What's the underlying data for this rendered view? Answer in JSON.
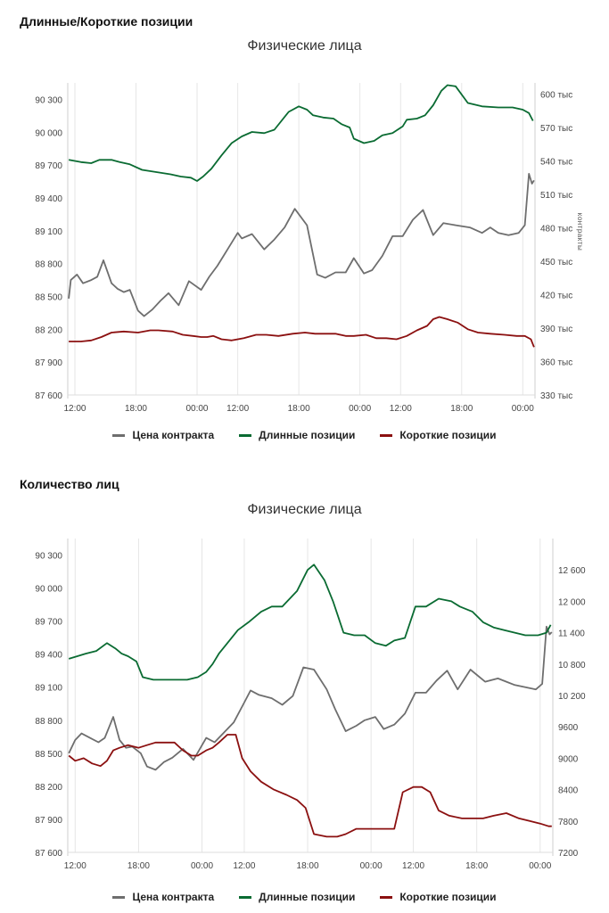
{
  "sections": [
    {
      "title": "Длинные/Короткие позиции",
      "subtitle": "Физические лица"
    },
    {
      "title": "Количество лиц",
      "subtitle": "Физические лица"
    }
  ],
  "legend": [
    {
      "label": "Цена контракта",
      "color": "#6e6e6e"
    },
    {
      "label": "Длинные позиции",
      "color": "#0a6b32"
    },
    {
      "label": "Короткие позиции",
      "color": "#8b1010"
    }
  ],
  "chart_data": [
    {
      "type": "line",
      "title": "Физические лица",
      "x_ticks": [
        "12:00",
        "18:00",
        "00:00",
        "12:00",
        "18:00",
        "00:00",
        "12:00",
        "18:00",
        "00:00"
      ],
      "x_tick_hours": [
        12,
        18,
        24,
        28,
        34,
        40,
        44,
        50,
        56
      ],
      "x_range": [
        11.3,
        57.2
      ],
      "left_axis": {
        "ylim": [
          87600,
          90450
        ],
        "ticks": [
          87600,
          87900,
          88200,
          88500,
          88800,
          89100,
          89400,
          89700,
          90000,
          90300
        ],
        "tick_labels": [
          "87 600",
          "87 900",
          "88 200",
          "88 500",
          "88 800",
          "89 100",
          "89 400",
          "89 700",
          "90 000",
          "90 300"
        ]
      },
      "right_axis": {
        "label": "контракты",
        "ylim": [
          330000,
          610000
        ],
        "ticks": [
          330000,
          360000,
          390000,
          420000,
          450000,
          480000,
          510000,
          540000,
          570000,
          600000
        ],
        "tick_labels": [
          "330 тыс",
          "360 тыс",
          "390 тыс",
          "420 тыс",
          "450 тыс",
          "480 тыс",
          "510 тыс",
          "540 тыс",
          "570 тыс",
          "600 тыс"
        ]
      },
      "series": [
        {
          "name": "Цена контракта",
          "axis": "left",
          "x": [
            11.4,
            11.6,
            12.2,
            12.8,
            13.6,
            14.2,
            14.8,
            15.6,
            16.2,
            16.8,
            17.4,
            18.2,
            18.8,
            19.6,
            20.4,
            21.2,
            22.2,
            23.2,
            24.4,
            25.2,
            26.0,
            27.0,
            28.0,
            28.4,
            29.4,
            30.6,
            31.6,
            32.6,
            33.6,
            34.8,
            35.8,
            36.6,
            37.6,
            38.6,
            39.4,
            40.4,
            41.2,
            42.2,
            43.2,
            44.2,
            45.2,
            46.2,
            47.2,
            48.2,
            49.4,
            50.8,
            52.0,
            52.8,
            53.6,
            54.6,
            55.6,
            56.2,
            56.6,
            56.9,
            57.1
          ],
          "y": [
            88480,
            88650,
            88700,
            88620,
            88650,
            88680,
            88830,
            88620,
            88570,
            88540,
            88560,
            88370,
            88320,
            88380,
            88460,
            88530,
            88420,
            88640,
            88560,
            88680,
            88780,
            88930,
            89080,
            89030,
            89070,
            88930,
            89020,
            89130,
            89300,
            89150,
            88700,
            88670,
            88720,
            88720,
            88850,
            88710,
            88740,
            88870,
            89050,
            89050,
            89200,
            89290,
            89060,
            89170,
            89150,
            89130,
            89080,
            89130,
            89080,
            89060,
            89080,
            89150,
            89620,
            89530,
            89560
          ]
        },
        {
          "name": "Длинные позиции",
          "axis": "right",
          "x": [
            11.4,
            12.6,
            13.6,
            14.4,
            15.6,
            16.4,
            17.4,
            18.6,
            20.0,
            21.4,
            22.4,
            23.4,
            24.0,
            24.6,
            25.4,
            26.4,
            27.4,
            28.4,
            29.4,
            30.6,
            31.6,
            33.0,
            34.0,
            34.8,
            35.4,
            36.4,
            37.4,
            38.2,
            39.0,
            39.4,
            40.4,
            41.4,
            42.2,
            43.2,
            44.2,
            44.6,
            45.6,
            46.4,
            47.2,
            48.0,
            48.6,
            49.4,
            50.6,
            52.0,
            53.6,
            55.0,
            56.0,
            56.6,
            57.0
          ],
          "y": [
            541000,
            539000,
            538000,
            541000,
            541000,
            539000,
            537000,
            532000,
            530000,
            528000,
            526000,
            525000,
            522000,
            526000,
            533000,
            545000,
            556000,
            562000,
            566000,
            565000,
            568000,
            584000,
            589000,
            586000,
            581000,
            579000,
            578000,
            573000,
            570000,
            560000,
            556000,
            558000,
            563000,
            565000,
            571000,
            577000,
            578000,
            581000,
            590000,
            603000,
            608000,
            607000,
            592000,
            589000,
            588000,
            588000,
            586000,
            583000,
            576000
          ]
        },
        {
          "name": "Короткие позиции",
          "axis": "right",
          "x": [
            11.4,
            12.6,
            13.6,
            14.6,
            15.6,
            16.8,
            18.2,
            19.4,
            20.2,
            21.6,
            22.6,
            23.6,
            24.4,
            25.0,
            25.6,
            26.4,
            27.4,
            28.6,
            29.8,
            30.8,
            32.0,
            33.4,
            34.6,
            35.6,
            36.4,
            37.6,
            38.6,
            39.4,
            40.6,
            41.6,
            42.6,
            43.6,
            44.6,
            45.6,
            46.6,
            47.2,
            47.8,
            48.6,
            49.6,
            50.6,
            51.6,
            52.8,
            54.2,
            55.4,
            56.2,
            56.8,
            57.1
          ],
          "y": [
            378000,
            378000,
            379000,
            382000,
            386000,
            387000,
            386000,
            388000,
            388000,
            387000,
            384000,
            383000,
            382000,
            382000,
            383000,
            380000,
            379000,
            381000,
            384000,
            384000,
            383000,
            385000,
            386000,
            385000,
            385000,
            385000,
            383000,
            383000,
            384000,
            381000,
            381000,
            380000,
            383000,
            388000,
            392000,
            398000,
            400000,
            398000,
            395000,
            389000,
            386000,
            385000,
            384000,
            383000,
            383000,
            380000,
            373000
          ]
        }
      ]
    },
    {
      "type": "line",
      "title": "Физические лица",
      "x_ticks": [
        "12:00",
        "18:00",
        "00:00",
        "12:00",
        "18:00",
        "00:00",
        "12:00",
        "18:00",
        "00:00"
      ],
      "x_tick_hours": [
        12,
        18,
        24,
        28,
        34,
        40,
        44,
        50,
        56
      ],
      "x_range": [
        11.3,
        57.2
      ],
      "left_axis": {
        "ylim": [
          87600,
          90450
        ],
        "ticks": [
          87600,
          87900,
          88200,
          88500,
          88800,
          89100,
          89400,
          89700,
          90000,
          90300
        ],
        "tick_labels": [
          "87 600",
          "87 900",
          "88 200",
          "88 500",
          "88 800",
          "89 100",
          "89 400",
          "89 700",
          "90 000",
          "90 300"
        ]
      },
      "right_axis": {
        "label": "",
        "ylim": [
          7200,
          13200
        ],
        "ticks": [
          7200,
          7800,
          8400,
          9000,
          9600,
          10200,
          10800,
          11400,
          12000,
          12600
        ],
        "tick_labels": [
          "7200",
          "7800",
          "8400",
          "9000",
          "9600",
          "10 200",
          "10 800",
          "11 400",
          "12 000",
          "12 600"
        ]
      },
      "series": [
        {
          "name": "Цена контракта",
          "axis": "left",
          "x": [
            11.4,
            12.0,
            12.6,
            13.4,
            14.2,
            14.8,
            15.6,
            16.2,
            16.8,
            17.4,
            18.2,
            18.8,
            19.6,
            20.4,
            21.2,
            22.2,
            23.2,
            24.4,
            25.2,
            26.0,
            27.0,
            28.0,
            28.6,
            29.4,
            30.6,
            31.6,
            32.6,
            33.6,
            34.6,
            35.8,
            36.6,
            37.6,
            38.6,
            39.4,
            40.4,
            41.2,
            42.2,
            43.2,
            44.2,
            45.2,
            46.2,
            47.2,
            48.2,
            49.4,
            50.8,
            52.0,
            52.8,
            53.6,
            54.6,
            55.6,
            56.2,
            56.6,
            56.9,
            57.1
          ],
          "y": [
            88500,
            88620,
            88680,
            88640,
            88600,
            88640,
            88830,
            88620,
            88550,
            88560,
            88500,
            88380,
            88350,
            88420,
            88460,
            88540,
            88440,
            88640,
            88600,
            88680,
            88780,
            88960,
            89070,
            89030,
            89000,
            88940,
            89020,
            89280,
            89260,
            89080,
            88900,
            88700,
            88750,
            88800,
            88830,
            88720,
            88760,
            88860,
            89050,
            89050,
            89160,
            89250,
            89080,
            89260,
            89150,
            89180,
            89150,
            89120,
            89100,
            89080,
            89130,
            89650,
            89580,
            89600
          ]
        },
        {
          "name": "Длинные позиции",
          "axis": "right",
          "x": [
            11.4,
            12.2,
            13.0,
            14.0,
            15.0,
            15.8,
            16.4,
            17.0,
            17.8,
            18.4,
            19.4,
            20.6,
            21.6,
            22.6,
            23.6,
            24.4,
            25.0,
            25.6,
            26.4,
            27.4,
            28.4,
            29.6,
            30.6,
            31.6,
            33.0,
            34.0,
            34.6,
            35.6,
            36.4,
            37.4,
            38.4,
            39.4,
            40.4,
            41.4,
            42.2,
            43.2,
            44.2,
            45.2,
            46.4,
            47.6,
            48.4,
            49.6,
            50.6,
            51.6,
            52.6,
            53.6,
            54.6,
            55.8,
            56.6,
            57.0
          ],
          "y": [
            10900,
            10950,
            11000,
            11050,
            11200,
            11100,
            11000,
            10950,
            10850,
            10550,
            10500,
            10500,
            10500,
            10500,
            10550,
            10650,
            10800,
            11000,
            11200,
            11450,
            11600,
            11800,
            11900,
            11900,
            12200,
            12600,
            12700,
            12400,
            12000,
            11400,
            11350,
            11350,
            11200,
            11150,
            11250,
            11300,
            11900,
            11900,
            12050,
            12000,
            11900,
            11800,
            11600,
            11500,
            11450,
            11400,
            11350,
            11350,
            11400,
            11550
          ]
        },
        {
          "name": "Короткие позиции",
          "axis": "right",
          "x": [
            11.4,
            12.0,
            12.8,
            13.6,
            14.4,
            15.0,
            15.6,
            16.2,
            17.0,
            18.0,
            18.8,
            19.6,
            20.4,
            21.4,
            22.2,
            23.0,
            23.6,
            24.4,
            25.0,
            25.6,
            26.4,
            27.2,
            27.8,
            28.6,
            29.6,
            30.8,
            32.0,
            33.0,
            33.8,
            34.6,
            35.8,
            36.8,
            37.6,
            38.6,
            39.6,
            40.6,
            41.4,
            42.2,
            43.0,
            44.0,
            44.8,
            45.6,
            46.4,
            47.4,
            48.6,
            49.6,
            50.6,
            51.6,
            52.8,
            54.0,
            55.0,
            56.0,
            56.8,
            57.1
          ],
          "y": [
            9050,
            8950,
            9000,
            8900,
            8850,
            8950,
            9150,
            9200,
            9250,
            9200,
            9250,
            9300,
            9300,
            9300,
            9150,
            9050,
            9050,
            9150,
            9200,
            9300,
            9450,
            9450,
            9000,
            8750,
            8550,
            8400,
            8300,
            8200,
            8050,
            7550,
            7500,
            7500,
            7550,
            7650,
            7650,
            7650,
            7650,
            7650,
            8350,
            8450,
            8450,
            8350,
            8000,
            7900,
            7850,
            7850,
            7850,
            7900,
            7950,
            7850,
            7800,
            7750,
            7700,
            7700
          ]
        }
      ]
    }
  ]
}
